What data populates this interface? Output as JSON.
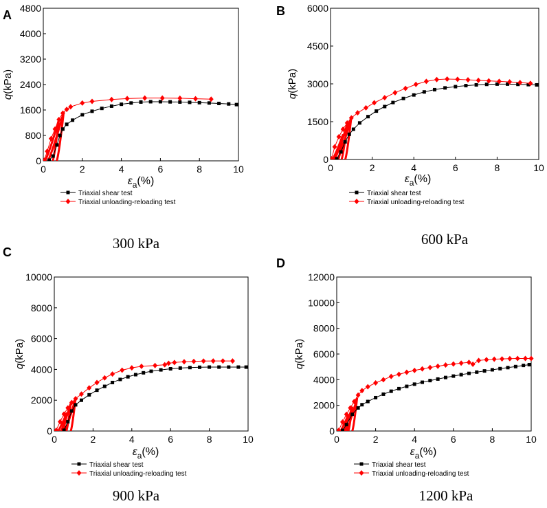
{
  "chart_data": [
    {
      "type": "scatter",
      "panel_letter": "A",
      "caption": "300 kPa",
      "xlabel": "ε",
      "xlabel_sub": "a",
      "xlabel_unit": "(%)",
      "ylabel": "q",
      "ylabel_unit": "(kPa)",
      "xlim": [
        0,
        10
      ],
      "ylim": [
        0,
        4800
      ],
      "xticks": [
        0,
        2,
        4,
        6,
        8,
        10
      ],
      "yticks": [
        0,
        800,
        1600,
        2400,
        3200,
        4000,
        4800
      ],
      "legend": [
        "Triaxial shear test",
        "Triaxial unloading-reloading test"
      ],
      "series": [
        {
          "name": "Triaxial shear test",
          "color": "#000000",
          "marker": "square",
          "x": [
            0.3,
            0.5,
            0.7,
            0.85,
            1.0,
            1.2,
            1.5,
            2.0,
            2.5,
            3.0,
            3.5,
            4.0,
            4.5,
            5.0,
            5.5,
            6.0,
            6.5,
            7.0,
            7.5,
            8.0,
            8.5,
            9.0,
            9.5,
            9.9
          ],
          "y": [
            20,
            150,
            500,
            800,
            1000,
            1150,
            1280,
            1450,
            1560,
            1650,
            1720,
            1780,
            1820,
            1850,
            1860,
            1860,
            1855,
            1850,
            1840,
            1830,
            1820,
            1805,
            1790,
            1770
          ]
        },
        {
          "name": "Triaxial unloading-reloading test",
          "color": "#ff0000",
          "marker": "diamond",
          "x": [
            0.05,
            0.2,
            0.4,
            0.6,
            0.8,
            1.0,
            1.2,
            1.4,
            2.0,
            2.5,
            3.5,
            4.3,
            5.2,
            6.1,
            7.0,
            7.8,
            8.6
          ],
          "y": [
            20,
            300,
            700,
            1000,
            1300,
            1500,
            1620,
            1700,
            1820,
            1870,
            1930,
            1960,
            1975,
            1975,
            1970,
            1955,
            1940
          ]
        }
      ],
      "loops": [
        {
          "x0": 0.1,
          "x1": 0.8,
          "y1": 1300
        },
        {
          "x0": 0.25,
          "x1": 1.05,
          "y1": 1550
        }
      ]
    },
    {
      "type": "scatter",
      "panel_letter": "B",
      "caption": "600 kPa",
      "xlabel": "ε",
      "xlabel_sub": "a",
      "xlabel_unit": "(%)",
      "ylabel": "q",
      "ylabel_unit": "(kPa)",
      "xlim": [
        0,
        10
      ],
      "ylim": [
        0,
        6000
      ],
      "xticks": [
        0,
        2,
        4,
        6,
        8,
        10
      ],
      "yticks": [
        0,
        1500,
        3000,
        4500,
        6000
      ],
      "legend": [
        "Triaxial shear test",
        "Triaxial unloading-reloading test"
      ],
      "series": [
        {
          "name": "Triaxial shear test",
          "color": "#000000",
          "marker": "square",
          "x": [
            0.3,
            0.5,
            0.7,
            0.9,
            1.1,
            1.4,
            1.8,
            2.2,
            2.6,
            3.0,
            3.5,
            4.0,
            4.5,
            5.0,
            5.5,
            6.0,
            6.5,
            7.0,
            7.5,
            8.0,
            8.5,
            9.0,
            9.5,
            9.9
          ],
          "y": [
            30,
            300,
            700,
            1000,
            1200,
            1450,
            1700,
            1920,
            2100,
            2260,
            2420,
            2560,
            2680,
            2770,
            2840,
            2890,
            2930,
            2960,
            2980,
            2990,
            2990,
            2980,
            2970,
            2960
          ]
        },
        {
          "name": "Triaxial unloading-reloading test",
          "color": "#ff0000",
          "marker": "diamond",
          "x": [
            0.05,
            0.2,
            0.4,
            0.6,
            0.8,
            1.0,
            1.3,
            1.7,
            2.1,
            2.6,
            3.1,
            3.6,
            4.1,
            4.6,
            5.1,
            5.6,
            6.1,
            6.6,
            7.1,
            7.6,
            8.1,
            8.6,
            9.1,
            9.6
          ],
          "y": [
            30,
            500,
            900,
            1200,
            1450,
            1650,
            1850,
            2050,
            2250,
            2450,
            2650,
            2820,
            2980,
            3100,
            3170,
            3190,
            3180,
            3160,
            3140,
            3120,
            3100,
            3080,
            3050,
            3020
          ]
        }
      ],
      "loops": [
        {
          "x0": 0.1,
          "x1": 0.6,
          "y1": 1000
        },
        {
          "x0": 0.2,
          "x1": 0.8,
          "y1": 1400
        },
        {
          "x0": 0.35,
          "x1": 1.0,
          "y1": 1700
        }
      ]
    },
    {
      "type": "scatter",
      "panel_letter": "C",
      "caption": "900 kPa",
      "xlabel": "ε",
      "xlabel_sub": "a",
      "xlabel_unit": "(%)",
      "ylabel": "q",
      "ylabel_unit": "(kPa)",
      "xlim": [
        0,
        10
      ],
      "ylim": [
        0,
        10000
      ],
      "xticks": [
        0,
        2,
        4,
        6,
        8,
        10
      ],
      "yticks": [
        0,
        2000,
        4000,
        6000,
        8000,
        10000
      ],
      "legend": [
        "Triaxial shear test",
        "Triaxial unloading-reloading test"
      ],
      "series": [
        {
          "name": "Triaxial shear test",
          "color": "#000000",
          "marker": "square",
          "x": [
            0.5,
            0.7,
            0.9,
            1.1,
            1.4,
            1.8,
            2.2,
            2.6,
            3.0,
            3.4,
            3.8,
            4.2,
            4.6,
            5.0,
            5.5,
            6.0,
            6.5,
            7.0,
            7.5,
            8.0,
            8.5,
            9.0,
            9.5,
            9.9
          ],
          "y": [
            50,
            600,
            1300,
            1700,
            2000,
            2350,
            2650,
            2900,
            3150,
            3350,
            3520,
            3660,
            3780,
            3880,
            3970,
            4040,
            4090,
            4120,
            4140,
            4150,
            4150,
            4150,
            4150,
            4150
          ]
        },
        {
          "name": "Triaxial unloading-reloading test",
          "color": "#ff0000",
          "marker": "diamond",
          "x": [
            0.1,
            0.3,
            0.5,
            0.7,
            0.9,
            1.1,
            1.4,
            1.8,
            2.2,
            2.6,
            3.0,
            3.5,
            4.0,
            4.5,
            5.2,
            5.7,
            5.9,
            6.2,
            6.7,
            7.2,
            7.7,
            8.2,
            8.7,
            9.2
          ],
          "y": [
            50,
            600,
            1100,
            1500,
            1850,
            2100,
            2400,
            2800,
            3150,
            3450,
            3700,
            3950,
            4100,
            4200,
            4250,
            4300,
            4400,
            4450,
            4500,
            4520,
            4540,
            4550,
            4550,
            4550
          ]
        }
      ],
      "loops": [
        {
          "x0": 0.2,
          "x1": 0.65,
          "y1": 1200
        },
        {
          "x0": 0.35,
          "x1": 0.85,
          "y1": 1800
        },
        {
          "x0": 0.55,
          "x1": 1.1,
          "y1": 2150
        }
      ]
    },
    {
      "type": "scatter",
      "panel_letter": "D",
      "caption": "1200 kPa",
      "xlabel": "ε",
      "xlabel_sub": "a",
      "xlabel_unit": "(%)",
      "ylabel": "q",
      "ylabel_unit": "(kPa)",
      "xlim": [
        0,
        10
      ],
      "ylim": [
        0,
        12000
      ],
      "xticks": [
        0,
        2,
        4,
        6,
        8,
        10
      ],
      "yticks": [
        0,
        2000,
        4000,
        6000,
        8000,
        10000,
        12000
      ],
      "legend": [
        "Triaxial shear test",
        "Triaxial unloading-reloading test"
      ],
      "series": [
        {
          "name": "Triaxial shear test",
          "color": "#000000",
          "marker": "square",
          "x": [
            0.3,
            0.5,
            0.8,
            1.1,
            1.3,
            1.6,
            2.0,
            2.4,
            2.8,
            3.2,
            3.6,
            4.0,
            4.4,
            4.8,
            5.2,
            5.6,
            6.0,
            6.4,
            6.8,
            7.2,
            7.6,
            8.0,
            8.4,
            8.8,
            9.2,
            9.6,
            9.9
          ],
          "y": [
            50,
            500,
            1300,
            1800,
            2050,
            2300,
            2600,
            2870,
            3100,
            3300,
            3480,
            3650,
            3800,
            3930,
            4050,
            4170,
            4280,
            4390,
            4490,
            4590,
            4680,
            4770,
            4860,
            4940,
            5020,
            5110,
            5170
          ]
        },
        {
          "name": "Triaxial unloading-reloading test",
          "color": "#ff0000",
          "marker": "diamond",
          "x": [
            0.1,
            0.3,
            0.5,
            0.7,
            0.9,
            1.1,
            1.3,
            1.6,
            2.0,
            2.4,
            2.8,
            3.2,
            3.6,
            4.0,
            4.4,
            4.8,
            5.2,
            5.6,
            6.0,
            6.4,
            6.8,
            7.0,
            7.3,
            7.7,
            8.1,
            8.5,
            8.9,
            9.3,
            9.7,
            10.0
          ],
          "y": [
            50,
            700,
            1300,
            1800,
            2300,
            2800,
            3150,
            3450,
            3750,
            4000,
            4250,
            4420,
            4580,
            4720,
            4840,
            4950,
            5050,
            5140,
            5220,
            5290,
            5350,
            5200,
            5500,
            5560,
            5600,
            5620,
            5640,
            5650,
            5650,
            5650
          ]
        }
      ],
      "loops": [
        {
          "x0": 0.2,
          "x1": 0.6,
          "y1": 1300
        },
        {
          "x0": 0.35,
          "x1": 0.8,
          "y1": 1900
        },
        {
          "x0": 0.5,
          "x1": 1.05,
          "y1": 2600
        }
      ]
    }
  ]
}
